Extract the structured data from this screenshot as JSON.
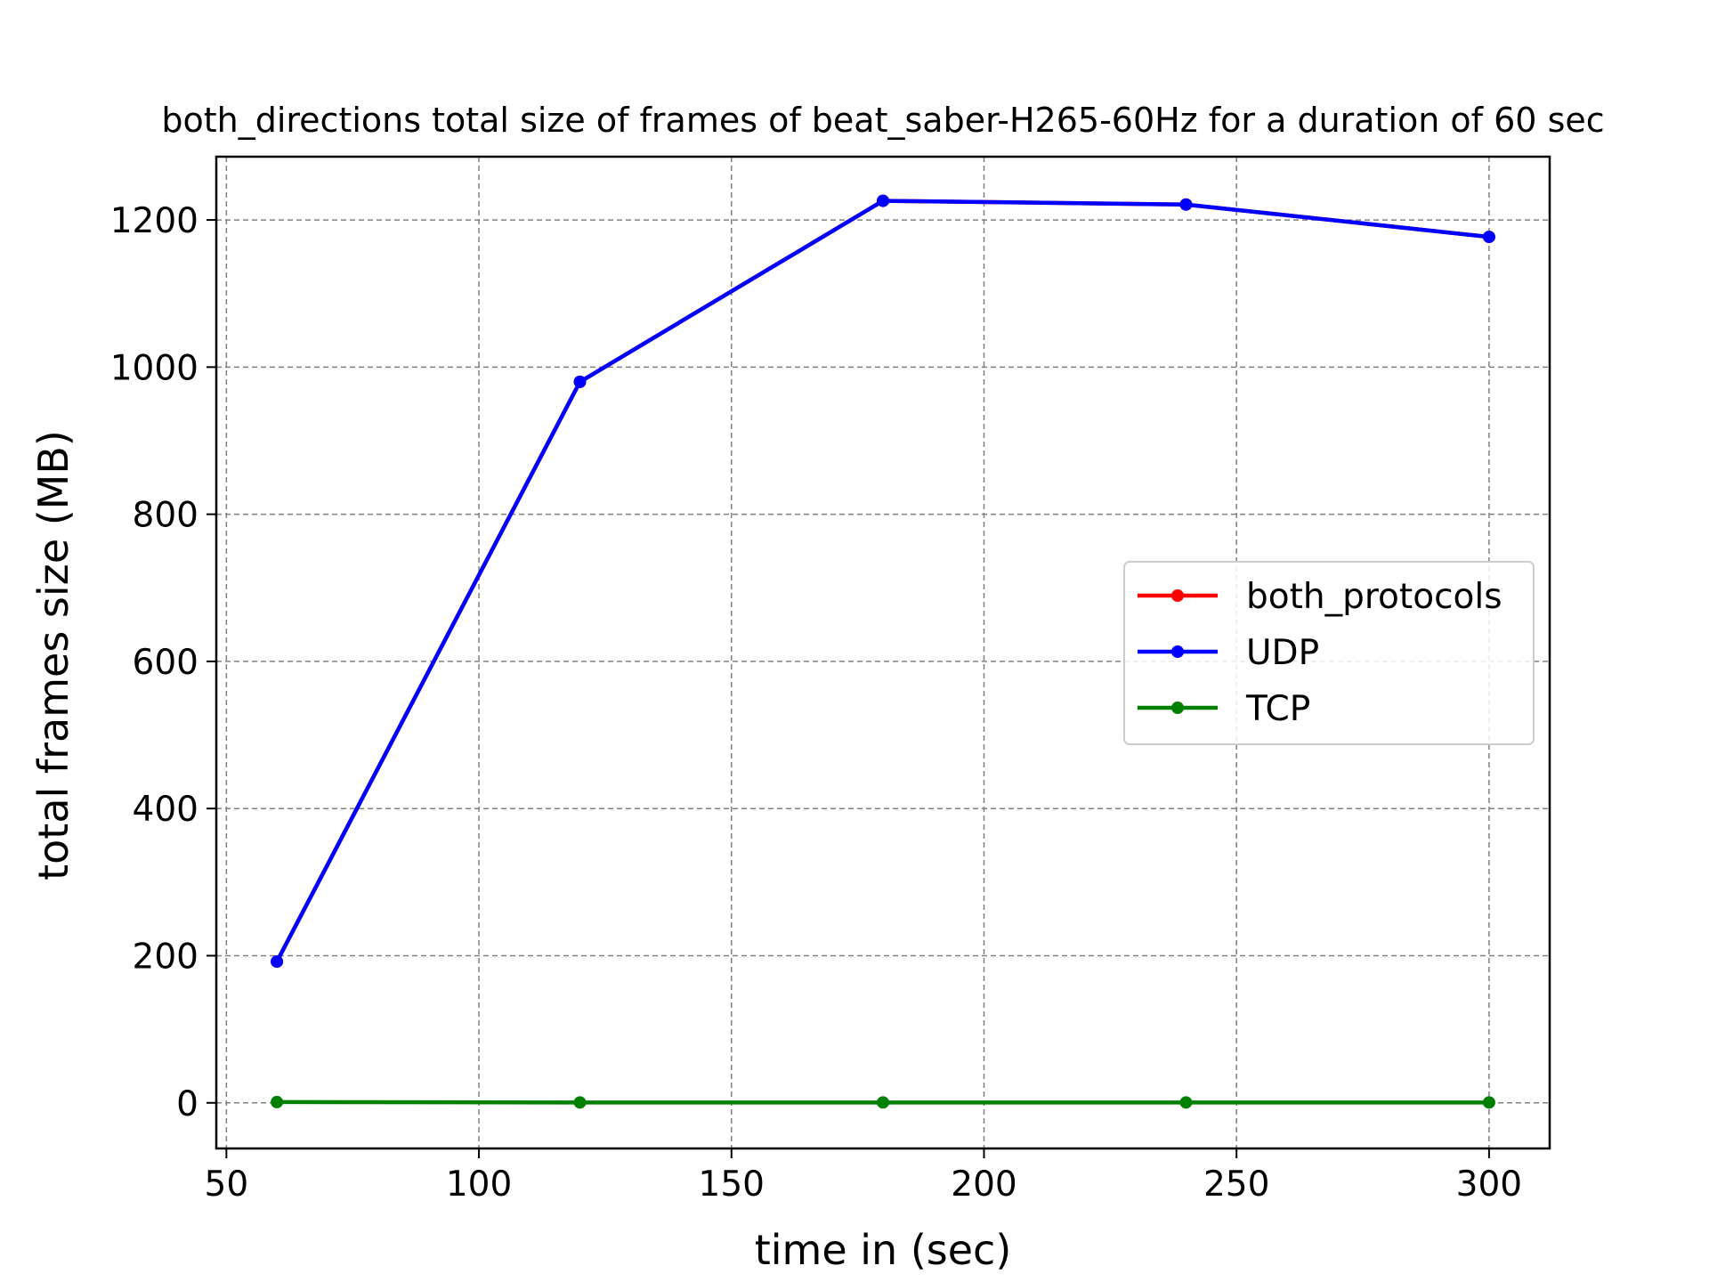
{
  "chart_data": {
    "type": "line",
    "title": "both_directions total size of frames of beat_saber-H265-60Hz for a duration of 60 sec",
    "xlabel": "time in (sec)",
    "ylabel": "total frames size (MB)",
    "xlim": [
      48,
      312
    ],
    "ylim": [
      -62,
      1286
    ],
    "xticks": [
      50,
      100,
      150,
      200,
      250,
      300
    ],
    "yticks": [
      0,
      200,
      400,
      600,
      800,
      1000,
      1200
    ],
    "grid": true,
    "legend_position": "center-right",
    "x": [
      60,
      120,
      180,
      240,
      300
    ],
    "series": [
      {
        "name": "both_protocols",
        "color": "#ff0000",
        "values": [
          192,
          980,
          1226,
          1221,
          1177
        ]
      },
      {
        "name": "UDP",
        "color": "#0000ff",
        "values": [
          192,
          980,
          1226,
          1221,
          1177
        ]
      },
      {
        "name": "TCP",
        "color": "#008000",
        "values": [
          1,
          0.5,
          0.5,
          0.5,
          0.5
        ]
      }
    ]
  }
}
